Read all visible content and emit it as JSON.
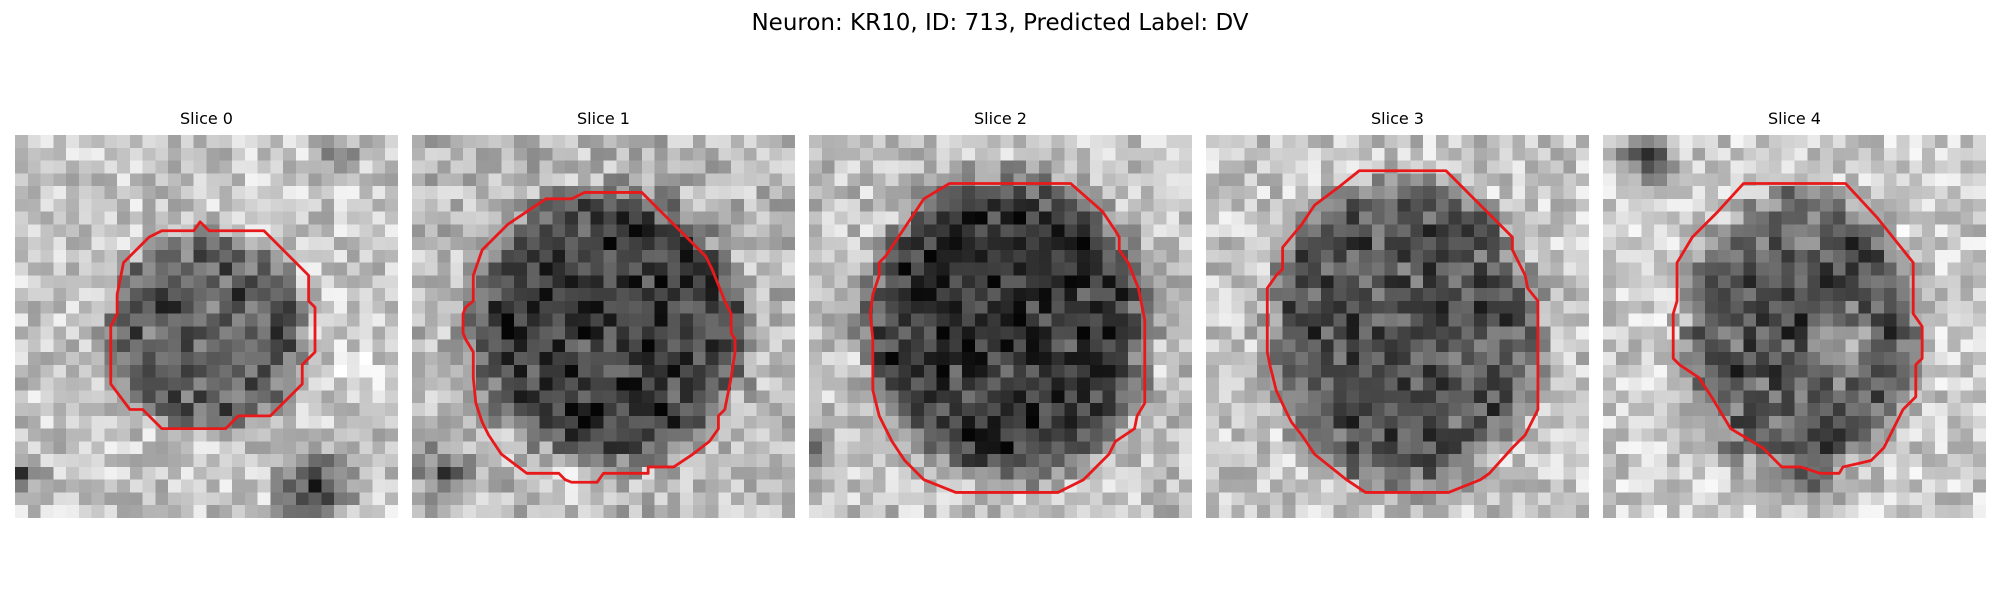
{
  "figure": {
    "title": "Neuron: KR10, ID: 713, Predicted Label: DV"
  },
  "panels": [
    {
      "title": "Slice 0"
    },
    {
      "title": "Slice 1"
    },
    {
      "title": "Slice 2"
    },
    {
      "title": "Slice 3"
    },
    {
      "title": "Slice 4"
    }
  ],
  "colors": {
    "contour": "#e8191b",
    "colormap": "gray"
  }
}
